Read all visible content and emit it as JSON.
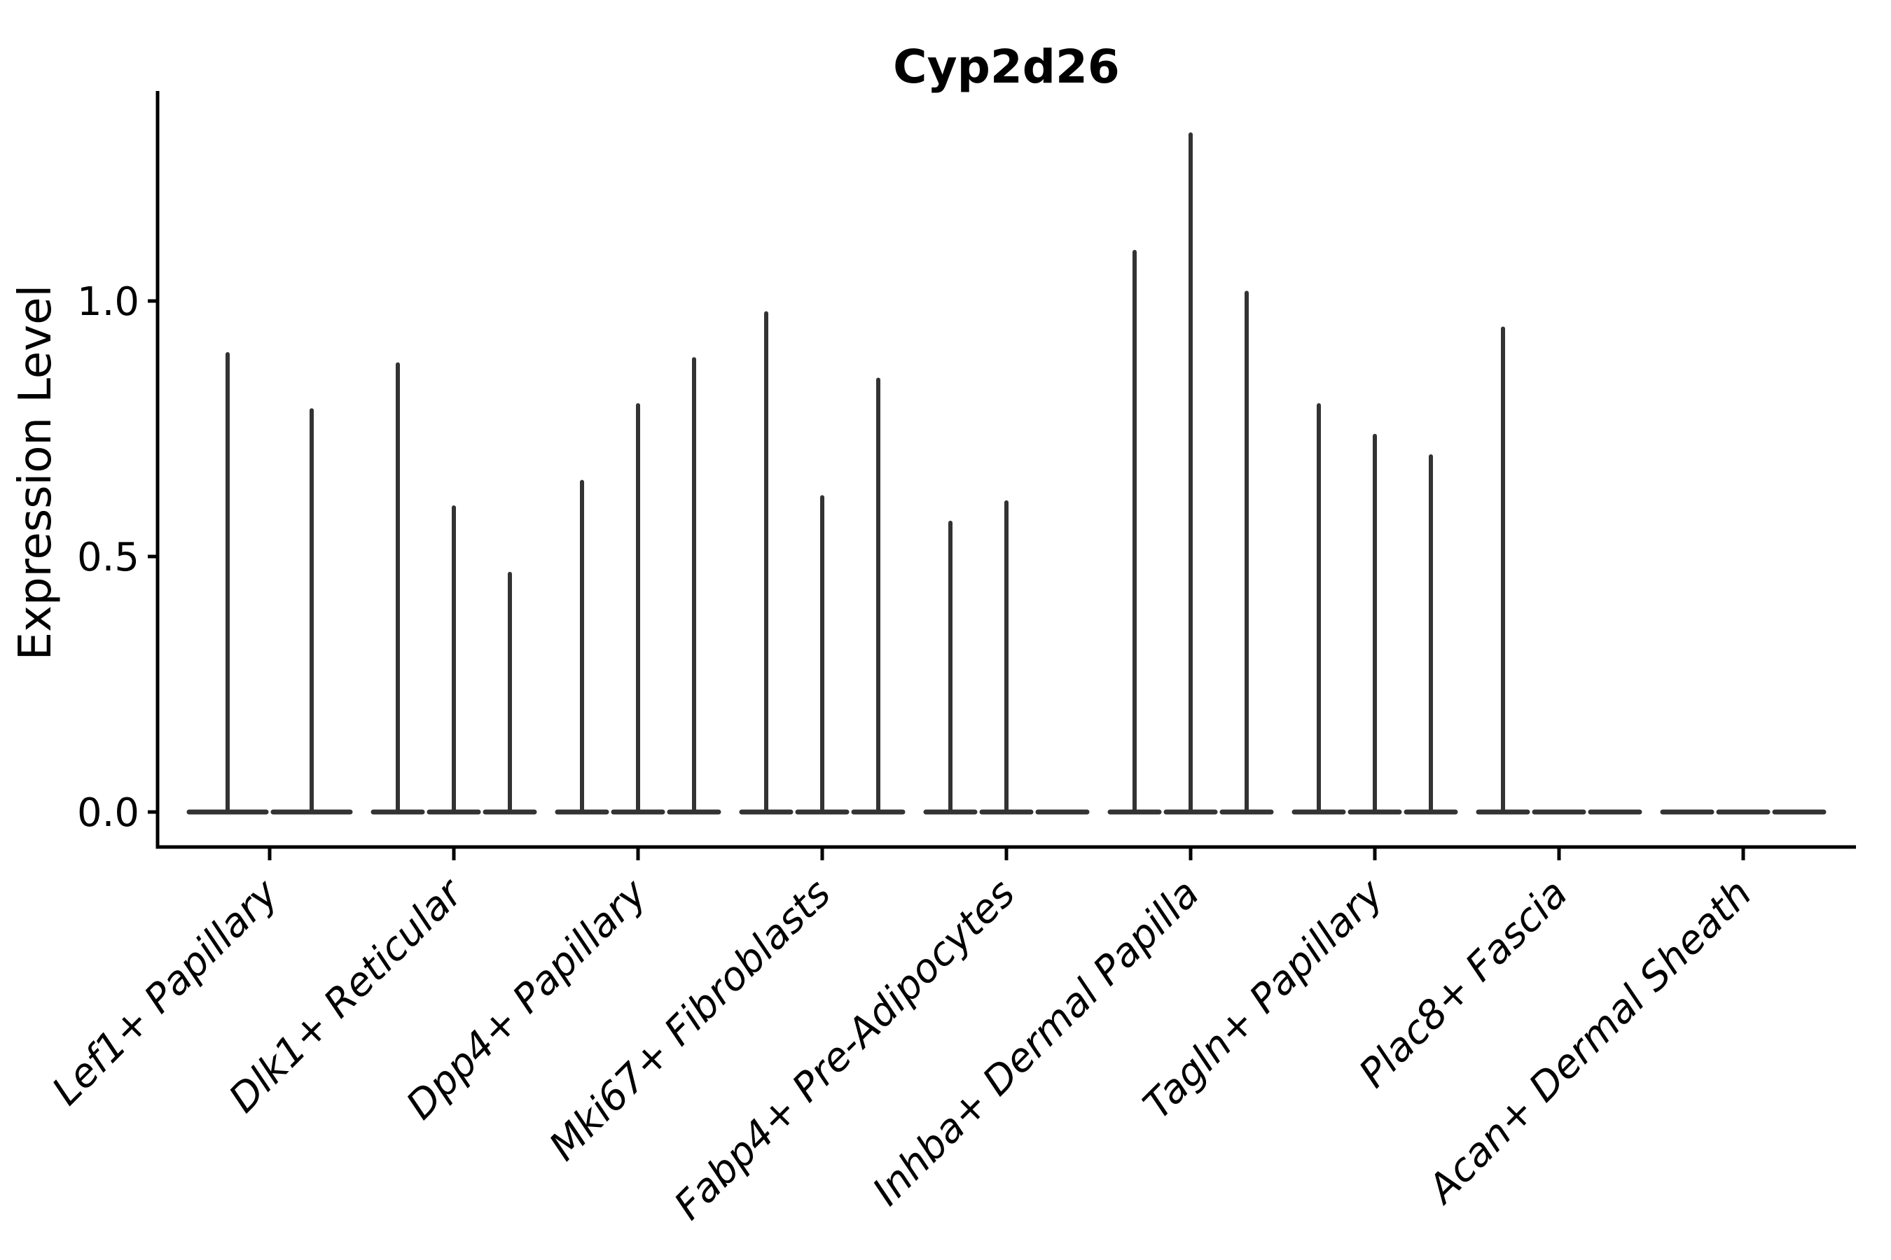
{
  "title": "Cyp2d26",
  "axes": {
    "y_label": "Expression Level",
    "y_tick_labels": [
      "0.0",
      "0.5",
      "1.0"
    ]
  },
  "chart_data": {
    "type": "violin",
    "title": "Cyp2d26",
    "xlabel": "",
    "ylabel": "Expression Level",
    "ylim": [
      0,
      1.41
    ],
    "yticks": [
      0.0,
      0.5,
      1.0
    ],
    "grid": false,
    "legend": "none",
    "note": "Collapsed single-cell expression violins: nearly all density at 0 (flat base) with a thin spike up to the max expression value; violins per category share the category slot",
    "categories": [
      "Lef1+ Papillary",
      "Dlk1+ Reticular",
      "Dpp4+ Papillary",
      "Mki67+ Fibroblasts",
      "Fabp4+ Pre-Adipocytes",
      "Inhba+ Dermal Papilla",
      "Tagln+ Papillary",
      "Plac8+ Fascia",
      "Acan+ Dermal Sheath"
    ],
    "groups": [
      {
        "category": "Lef1+ Papillary",
        "violin_max_values": [
          0.9,
          0.79
        ]
      },
      {
        "category": "Dlk1+ Reticular",
        "violin_max_values": [
          0.88,
          0.6,
          0.47
        ]
      },
      {
        "category": "Dpp4+ Papillary",
        "violin_max_values": [
          0.65,
          0.8,
          0.89
        ]
      },
      {
        "category": "Mki67+ Fibroblasts",
        "violin_max_values": [
          0.98,
          0.62,
          0.85
        ]
      },
      {
        "category": "Fabp4+ Pre-Adipocytes",
        "violin_max_values": [
          0.57,
          0.61,
          0.0
        ]
      },
      {
        "category": "Inhba+ Dermal Papilla",
        "violin_max_values": [
          1.1,
          1.33,
          1.02
        ]
      },
      {
        "category": "Tagln+ Papillary",
        "violin_max_values": [
          0.8,
          0.74,
          0.7
        ]
      },
      {
        "category": "Plac8+ Fascia",
        "violin_max_values": [
          0.95,
          0.0,
          0.0
        ]
      },
      {
        "category": "Acan+ Dermal Sheath",
        "violin_max_values": [
          0.0,
          0.0,
          0.0
        ]
      }
    ],
    "colors": {
      "violin": "#333333",
      "axis": "#000000",
      "text": "#000000",
      "background": "#ffffff"
    }
  }
}
